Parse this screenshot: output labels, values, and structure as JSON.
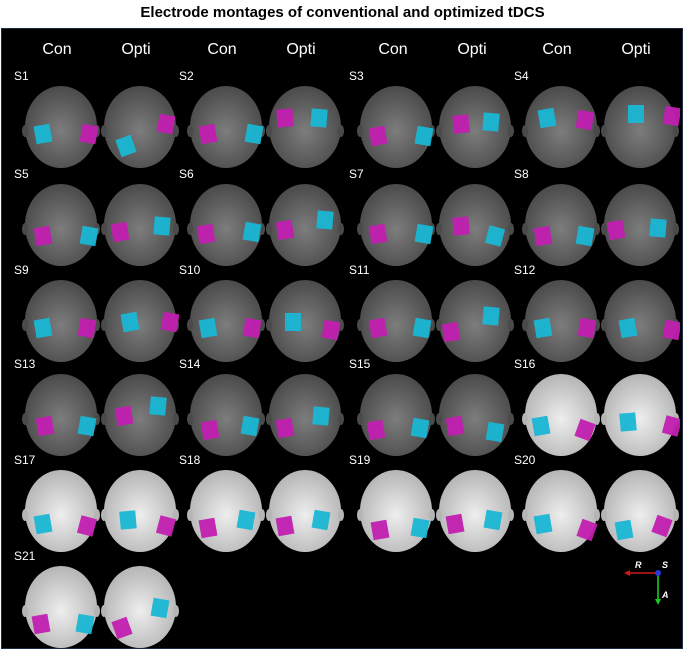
{
  "title": "Electrode montages of conventional and optimized tDCS",
  "column_headers": [
    "Con",
    "Opti",
    "Con",
    "Opti",
    "Con",
    "Opti",
    "Con",
    "Opti"
  ],
  "subjects": [
    {
      "label": "S1",
      "style": "gray"
    },
    {
      "label": "S2",
      "style": "gray"
    },
    {
      "label": "S3",
      "style": "gray"
    },
    {
      "label": "S4",
      "style": "gray"
    },
    {
      "label": "S5",
      "style": "gray"
    },
    {
      "label": "S6",
      "style": "gray"
    },
    {
      "label": "S7",
      "style": "gray"
    },
    {
      "label": "S8",
      "style": "gray"
    },
    {
      "label": "S9",
      "style": "gray"
    },
    {
      "label": "S10",
      "style": "gray"
    },
    {
      "label": "S11",
      "style": "gray"
    },
    {
      "label": "S12",
      "style": "gray"
    },
    {
      "label": "S13",
      "style": "gray"
    },
    {
      "label": "S14",
      "style": "gray"
    },
    {
      "label": "S15",
      "style": "gray"
    },
    {
      "label": "S16",
      "style": "white"
    },
    {
      "label": "S17",
      "style": "white"
    },
    {
      "label": "S18",
      "style": "white"
    },
    {
      "label": "S19",
      "style": "white"
    },
    {
      "label": "S20",
      "style": "white"
    },
    {
      "label": "S21",
      "style": "white"
    }
  ],
  "axis_labels": {
    "right": "R",
    "superior": "S",
    "anterior": "A"
  },
  "colors": {
    "background": "#000000",
    "electrode_cyan": "#19b6d4",
    "electrode_magenta": "#c21fb0",
    "scalp_gray": "#7d7d7d",
    "scalp_white": "#eeeeee",
    "axis_red": "#d01818",
    "axis_green": "#19c81e",
    "axis_blue": "#2a3ad8"
  }
}
